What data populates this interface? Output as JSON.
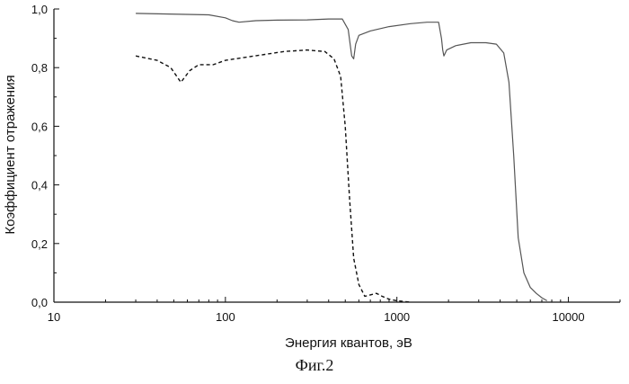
{
  "chart_data": {
    "type": "line",
    "title": "",
    "xlabel": "Энергия квантов, эВ",
    "ylabel": "Коэффициент отражения",
    "x_scale": "log",
    "xlim": [
      10,
      20000
    ],
    "ylim": [
      0,
      1.0
    ],
    "x_ticks": [
      10,
      100,
      1000,
      10000
    ],
    "x_tick_labels": [
      "10",
      "100",
      "1000",
      "10000"
    ],
    "y_ticks": [
      0,
      0.2,
      0.4,
      0.6,
      0.8,
      1.0
    ],
    "y_tick_labels": [
      "0,0",
      "0,2",
      "0,4",
      "0,6",
      "0,8",
      "1,0"
    ],
    "grid": false,
    "legend": "none",
    "series": [
      {
        "style": "solid",
        "color": "#555555",
        "x": [
          30,
          80,
          100,
          110,
          120,
          150,
          200,
          300,
          400,
          480,
          520,
          545,
          560,
          575,
          600,
          700,
          900,
          1200,
          1500,
          1750,
          1820,
          1850,
          1880,
          1950,
          2200,
          2700,
          3300,
          3800,
          4200,
          4500,
          4800,
          5100,
          5500,
          6000,
          6500,
          7000,
          7500
        ],
        "y": [
          0.985,
          0.98,
          0.97,
          0.96,
          0.955,
          0.96,
          0.962,
          0.963,
          0.966,
          0.966,
          0.93,
          0.84,
          0.83,
          0.88,
          0.91,
          0.925,
          0.94,
          0.95,
          0.955,
          0.955,
          0.9,
          0.86,
          0.84,
          0.86,
          0.875,
          0.885,
          0.885,
          0.88,
          0.85,
          0.75,
          0.5,
          0.22,
          0.1,
          0.05,
          0.03,
          0.015,
          0.005
        ]
      },
      {
        "style": "dashed",
        "color": "#111111",
        "x": [
          30,
          40,
          48,
          55,
          62,
          70,
          85,
          100,
          130,
          170,
          220,
          300,
          380,
          430,
          470,
          500,
          530,
          560,
          600,
          650,
          700,
          760,
          820,
          900,
          1000,
          1200
        ],
        "y": [
          0.84,
          0.825,
          0.8,
          0.75,
          0.79,
          0.81,
          0.81,
          0.825,
          0.835,
          0.845,
          0.855,
          0.86,
          0.855,
          0.83,
          0.77,
          0.6,
          0.35,
          0.15,
          0.06,
          0.02,
          0.025,
          0.03,
          0.02,
          0.01,
          0.005,
          0.0
        ]
      }
    ]
  },
  "caption": "Фиг.2"
}
